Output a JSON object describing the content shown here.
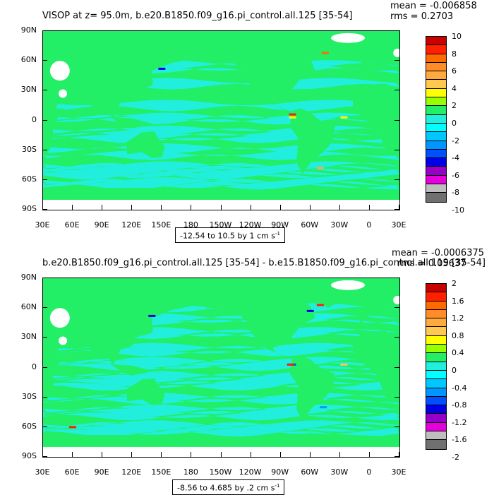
{
  "colors": {
    "land": "#22ee66",
    "ocean": "#22eedd",
    "missing": "#ffffff",
    "palette": [
      "#c80000",
      "#ff2000",
      "#ff6a00",
      "#ff8c28",
      "#ffaa3c",
      "#ffc850",
      "#ffff00",
      "#96ff00",
      "#22ee66",
      "#22eedd",
      "#00ffff",
      "#00c8ff",
      "#0096ff",
      "#0050ff",
      "#0000e6",
      "#9600c8",
      "#e600dc",
      "#bebebe",
      "#707070"
    ]
  },
  "lat_labels": [
    "90N",
    "60N",
    "30N",
    "0",
    "30S",
    "60S",
    "90S"
  ],
  "lon_labels": [
    "30E",
    "60E",
    "90E",
    "120E",
    "150E",
    "180",
    "150W",
    "120W",
    "90W",
    "60W",
    "30W",
    "0",
    "30E"
  ],
  "panels": [
    {
      "title": "VISOP at z=  95.0m, b.e20.B1850.f09_g16.pi_control.all.125 [35-54]",
      "mean": "mean = -0.006858",
      "rms": "rms = 0.2703",
      "range_text": "-12.54 to 10.5 by 1 cm s",
      "range_unit_exp": "-1",
      "colorbar_labels": [
        "10",
        "8",
        "6",
        "4",
        "2",
        "0",
        "-2",
        "-4",
        "-6",
        "-8",
        "-10"
      ]
    },
    {
      "title": "b.e20.B1850.f09_g16.pi_control.all.125 [35-54] - b.e15.B1850.f09_g16.pi_control.all.119 [35-54]",
      "mean": "mean = -0.0006375",
      "rms": "rms = 0.05637",
      "range_text": "-8.56 to 4.685 by .2 cm s",
      "range_unit_exp": "-1",
      "colorbar_labels": [
        "2",
        "1.6",
        "1.2",
        "0.8",
        "0.4",
        "0",
        "-0.4",
        "-0.8",
        "-1.2",
        "-1.6",
        "-2"
      ]
    }
  ]
}
